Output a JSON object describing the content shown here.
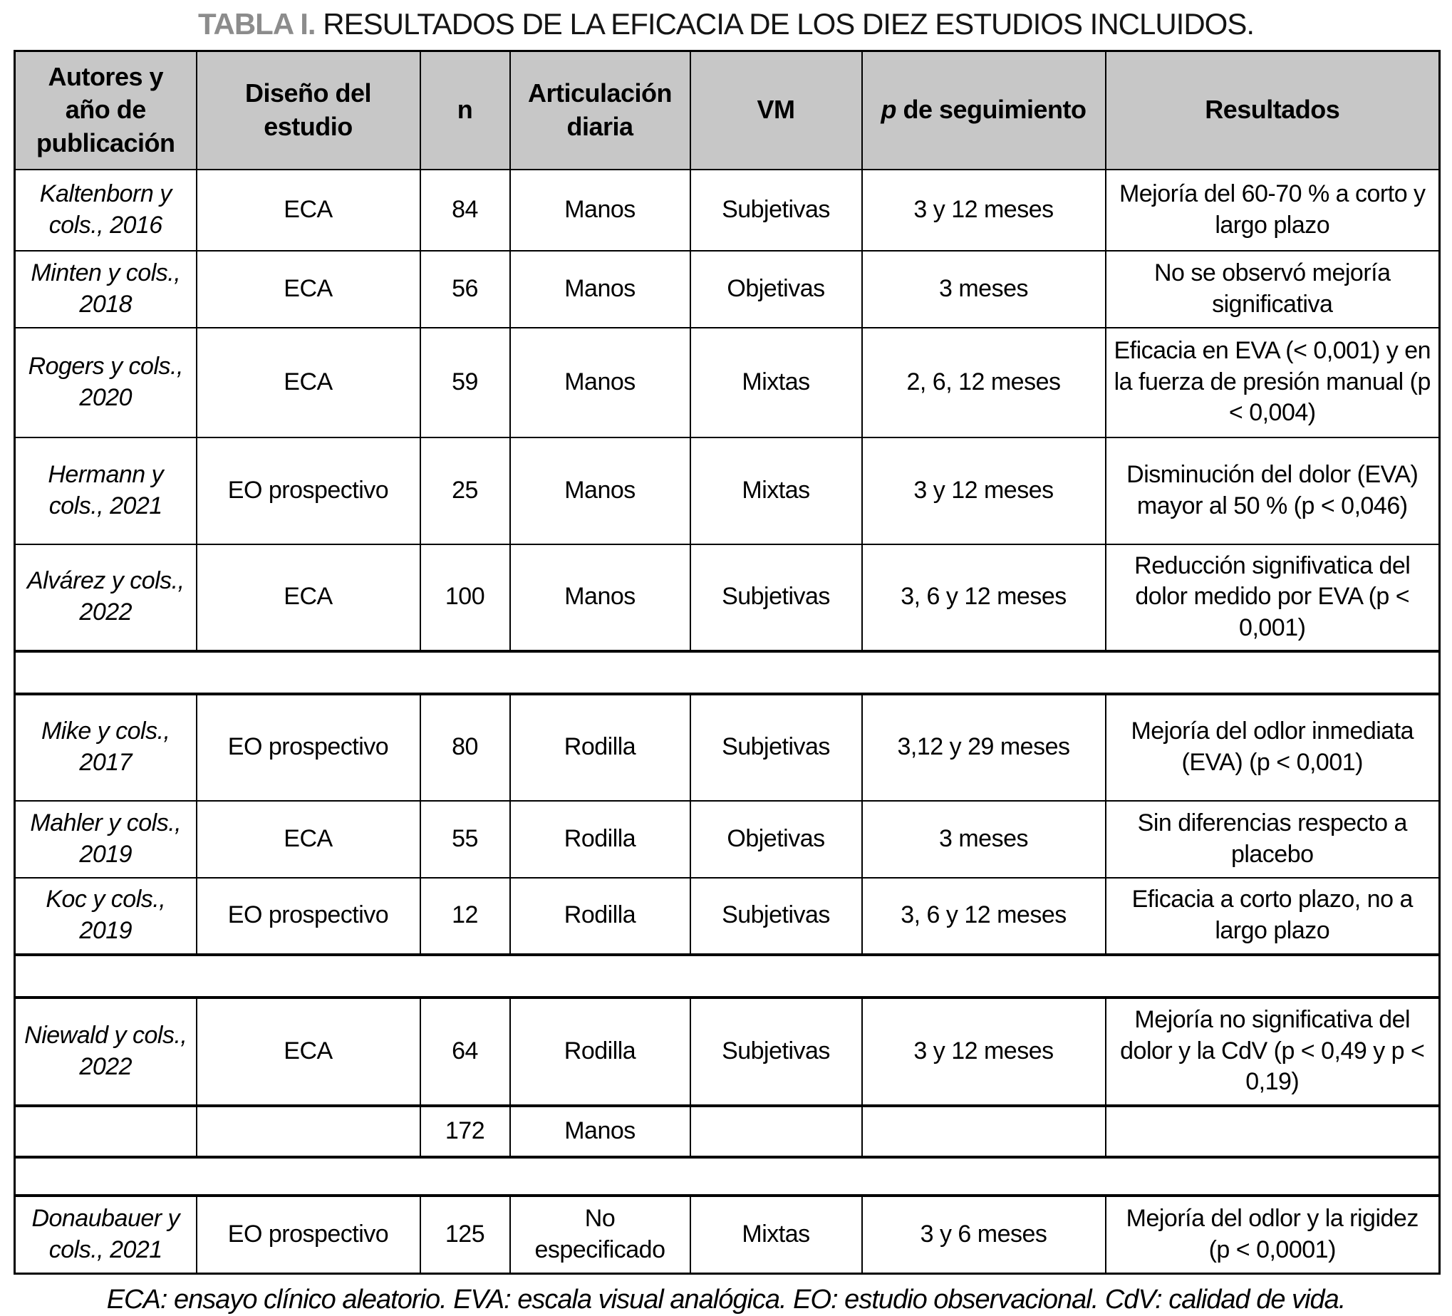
{
  "title": {
    "tag": "TABLA I.",
    "text": "RESULTADOS DE LA EFICACIA DE LOS DIEZ ESTUDIOS INCLUIDOS."
  },
  "table": {
    "columns": [
      {
        "label": "Autores y año de publicación"
      },
      {
        "label": "Diseño del estudio"
      },
      {
        "label": "n"
      },
      {
        "label": "Articulación diaria"
      },
      {
        "label": "VM"
      },
      {
        "italic_prefix": "p",
        "label": " de seguimiento"
      },
      {
        "label": "Resultados"
      }
    ],
    "rows": [
      {
        "type": "data",
        "author": "Kaltenborn y cols., 2016",
        "cells": [
          "ECA",
          "84",
          "Manos",
          "Subjetivas",
          "3 y 12 meses",
          "Mejoría del 60-70 % a corto y largo plazo"
        ]
      },
      {
        "type": "data",
        "author": "Minten y cols., 2018",
        "cells": [
          "ECA",
          "56",
          "Manos",
          "Objetivas",
          "3 meses",
          "No se observó mejoría significativa"
        ]
      },
      {
        "type": "data",
        "author": "Rogers y cols., 2020",
        "cells": [
          "ECA",
          "59",
          "Manos",
          "Mixtas",
          "2, 6, 12 meses",
          "Eficacia en EVA (< 0,001) y en la fuerza de presión manual (p < 0,004)"
        ]
      },
      {
        "type": "data",
        "author": "Hermann y cols., 2021",
        "cells": [
          "EO prospectivo",
          "25",
          "Manos",
          "Mixtas",
          "3 y 12 meses",
          "Disminución del dolor (EVA) mayor al 50 % (p < 0,046)"
        ]
      },
      {
        "type": "data",
        "author": "Alvárez y cols., 2022",
        "cells": [
          "ECA",
          "100",
          "Manos",
          "Subjetivas",
          "3, 6 y 12 meses",
          "Reducción signifivatica del dolor medido por EVA (p < 0,001)"
        ]
      },
      {
        "type": "gap"
      },
      {
        "type": "data",
        "author": "Mike y cols., 2017",
        "cells": [
          "EO prospectivo",
          "80",
          "Rodilla",
          "Subjetivas",
          "3,12 y 29 meses",
          "Mejoría del odlor inmediata (EVA) (p < 0,001)"
        ]
      },
      {
        "type": "data",
        "author": "Mahler y cols., 2019",
        "cells": [
          "ECA",
          "55",
          "Rodilla",
          "Objetivas",
          "3 meses",
          "Sin diferencias respecto a placebo"
        ]
      },
      {
        "type": "data",
        "author": "Koc y cols., 2019",
        "cells": [
          "EO prospectivo",
          "12",
          "Rodilla",
          "Subjetivas",
          "3, 6 y 12 meses",
          "Eficacia a corto plazo, no a largo plazo"
        ]
      },
      {
        "type": "gap"
      },
      {
        "type": "data",
        "author": "Niewald y cols., 2022",
        "cells": [
          "ECA",
          "64",
          "Rodilla",
          "Subjetivas",
          "3 y 12 meses",
          "Mejoría no significativa del dolor y la CdV (p < 0,49 y p < 0,19)"
        ]
      },
      {
        "type": "data",
        "thick": true,
        "author": "",
        "cells": [
          "",
          "172",
          "Manos",
          "",
          "",
          ""
        ]
      },
      {
        "type": "gap"
      },
      {
        "type": "data",
        "author": "Donaubauer y cols., 2021",
        "cells": [
          "EO prospectivo",
          "125",
          "No especificado",
          "Mixtas",
          "3 y 6 meses",
          "Mejoría del odlor y la rigidez (p < 0,0001)"
        ]
      }
    ]
  },
  "footnote": "ECA: ensayo clínico aleatorio. EVA: escala visual analógica. EO: estudio observacional. CdV: calidad de vida."
}
